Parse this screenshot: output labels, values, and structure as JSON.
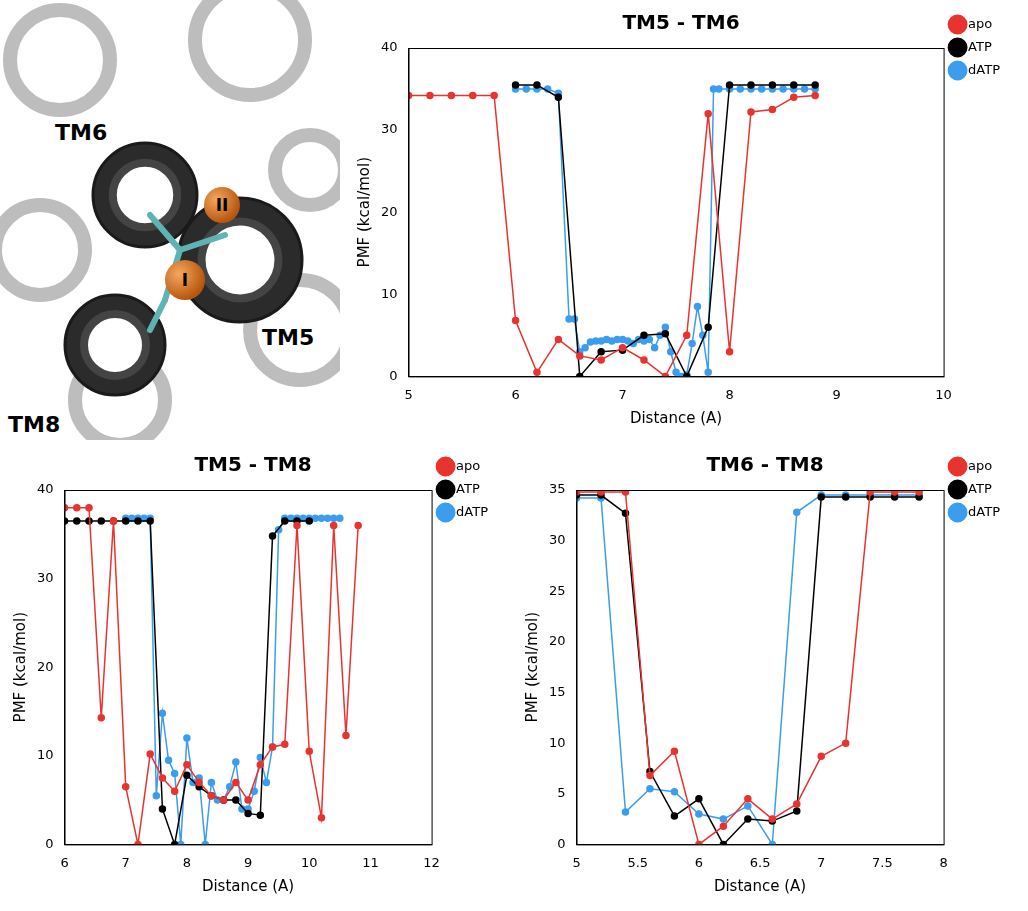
{
  "chart_data": [
    {
      "type": "line",
      "title": "TM5 - TM6",
      "x_label": "Distance (A)",
      "y_label": "PMF (kcal/mol)",
      "xlim": [
        5,
        10
      ],
      "xticks": [
        5,
        6,
        7,
        8,
        9,
        10
      ],
      "ylim": [
        0,
        40
      ],
      "yticks": [
        0,
        10,
        20,
        30,
        40
      ],
      "grid": false,
      "legend": "right",
      "series": [
        {
          "name": "apo",
          "color": "#e8332f",
          "marker": "circle",
          "line_style": "solid",
          "x": [
            5.0,
            5.2,
            5.4,
            5.6,
            5.8,
            6.0,
            6.2,
            6.4,
            6.6,
            6.8,
            7.0,
            7.2,
            7.4,
            7.6,
            7.8,
            8.0,
            8.2,
            8.4,
            8.6,
            8.8
          ],
          "values": [
            34.2,
            34.2,
            34.2,
            34.2,
            34.2,
            6.8,
            0.5,
            4.5,
            2.5,
            2.0,
            3.5,
            2.0,
            0,
            5.0,
            32.0,
            3.0,
            32.2,
            32.5,
            34.0,
            34.2
          ]
        },
        {
          "name": "ATP",
          "color": "#000000",
          "marker": "circle",
          "line_style": "solid",
          "x": [
            6.0,
            6.2,
            6.4,
            6.6,
            6.8,
            7.0,
            7.2,
            7.4,
            7.6,
            7.8,
            8.0,
            8.2,
            8.4,
            8.6,
            8.8
          ],
          "values": [
            35.5,
            35.5,
            34.0,
            0,
            3.0,
            3.2,
            5.0,
            5.2,
            0,
            6.0,
            35.5,
            35.5,
            35.5,
            35.5,
            35.5
          ]
        },
        {
          "name": "dATP",
          "color": "#3b9ded",
          "marker": "circle",
          "line_style": "solid",
          "x": [
            6.0,
            6.1,
            6.2,
            6.3,
            6.4,
            6.5,
            6.55,
            6.6,
            6.65,
            6.7,
            6.75,
            6.8,
            6.85,
            6.9,
            6.95,
            7.0,
            7.05,
            7.1,
            7.15,
            7.2,
            7.25,
            7.3,
            7.35,
            7.4,
            7.45,
            7.5,
            7.55,
            7.6,
            7.65,
            7.7,
            7.75,
            7.8,
            7.85,
            7.9,
            8.0,
            8.1,
            8.2,
            8.3,
            8.4,
            8.5,
            8.6,
            8.7,
            8.8
          ],
          "values": [
            35.0,
            35.0,
            35.0,
            35.0,
            34.5,
            7.0,
            7.0,
            3.0,
            3.5,
            4.2,
            4.3,
            4.3,
            4.5,
            4.3,
            4.5,
            4.5,
            4.3,
            4.0,
            4.5,
            4.3,
            4.5,
            3.5,
            5.0,
            6.0,
            3.0,
            0.5,
            0,
            0.2,
            4.0,
            8.5,
            5.0,
            0.5,
            35.0,
            35.0,
            35.0,
            35.0,
            35.0,
            35.0,
            35.0,
            35.0,
            35.0,
            35.0,
            35.0
          ]
        }
      ]
    },
    {
      "type": "line",
      "title": "TM5 - TM8",
      "x_label": "Distance (A)",
      "y_label": "PMF (kcal/mol)",
      "xlim": [
        6,
        12
      ],
      "xticks": [
        6,
        7,
        8,
        9,
        10,
        11,
        12
      ],
      "ylim": [
        0,
        40
      ],
      "yticks": [
        0,
        10,
        20,
        30,
        40
      ],
      "grid": false,
      "legend": "right",
      "series": [
        {
          "name": "apo",
          "color": "#e8332f",
          "marker": "circle",
          "line_style": "solid",
          "x": [
            6.0,
            6.2,
            6.4,
            6.6,
            6.8,
            7.0,
            7.2,
            7.4,
            7.6,
            7.8,
            8.0,
            8.2,
            8.4,
            8.6,
            8.8,
            9.0,
            9.2,
            9.4,
            9.6,
            9.8,
            10.0,
            10.2,
            10.4,
            10.6,
            10.8
          ],
          "values": [
            38.0,
            38.0,
            38.0,
            14.3,
            36.5,
            6.5,
            0,
            10.2,
            7.5,
            6.0,
            9.0,
            7.0,
            5.5,
            5.0,
            7.0,
            5.0,
            9.0,
            11.0,
            11.3,
            36.0,
            10.5,
            3.0,
            36.0,
            12.3,
            36.0
          ]
        },
        {
          "name": "ATP",
          "color": "#000000",
          "marker": "circle",
          "line_style": "solid",
          "x": [
            6.0,
            6.2,
            6.4,
            6.6,
            6.8,
            7.0,
            7.2,
            7.4,
            7.6,
            7.8,
            8.0,
            8.2,
            8.4,
            8.6,
            8.8,
            9.0,
            9.2,
            9.4,
            9.6,
            9.8,
            10.0
          ],
          "values": [
            36.5,
            36.5,
            36.5,
            36.5,
            36.5,
            36.5,
            36.5,
            36.5,
            4.0,
            0,
            7.8,
            6.5,
            5.5,
            5.0,
            5.0,
            3.5,
            3.3,
            34.8,
            36.5,
            36.5,
            36.5
          ]
        },
        {
          "name": "dATP",
          "color": "#3b9ded",
          "marker": "circle",
          "line_style": "solid",
          "x": [
            7.0,
            7.1,
            7.2,
            7.3,
            7.4,
            7.5,
            7.6,
            7.7,
            7.8,
            7.9,
            8.0,
            8.1,
            8.2,
            8.3,
            8.4,
            8.5,
            8.6,
            8.7,
            8.8,
            8.9,
            9.0,
            9.1,
            9.2,
            9.3,
            9.4,
            9.5,
            9.6,
            9.7,
            9.8,
            9.9,
            10.0,
            10.1,
            10.2,
            10.3,
            10.4,
            10.5
          ],
          "values": [
            36.8,
            36.8,
            36.8,
            36.8,
            36.8,
            5.5,
            14.8,
            9.5,
            8.0,
            0,
            12.0,
            7.0,
            7.5,
            0,
            7.0,
            5.0,
            5.0,
            6.5,
            9.3,
            4.0,
            4.0,
            6.0,
            9.8,
            7.0,
            11.0,
            35.5,
            36.8,
            36.8,
            36.8,
            36.8,
            36.8,
            36.8,
            36.8,
            36.8,
            36.8,
            36.8
          ]
        }
      ]
    },
    {
      "type": "line",
      "title": "TM6 - TM8",
      "x_label": "Distance (A)",
      "y_label": "PMF (kcal/mol)",
      "xlim": [
        5,
        8
      ],
      "xticks": [
        5,
        5.5,
        6,
        6.5,
        7,
        7.5,
        8
      ],
      "ylim": [
        0,
        35
      ],
      "yticks": [
        0,
        5,
        10,
        15,
        20,
        25,
        30,
        35
      ],
      "grid": false,
      "legend": "right",
      "series": [
        {
          "name": "apo",
          "color": "#e8332f",
          "marker": "circle",
          "line_style": "solid",
          "x": [
            5.0,
            5.2,
            5.4,
            5.6,
            5.8,
            6.0,
            6.2,
            6.4,
            6.6,
            6.8,
            7.0,
            7.2,
            7.4,
            7.6,
            7.8
          ],
          "values": [
            34.8,
            34.8,
            34.8,
            6.8,
            9.2,
            0,
            1.8,
            4.5,
            2.5,
            4.0,
            8.7,
            10.0,
            34.8,
            34.8,
            34.8
          ]
        },
        {
          "name": "ATP",
          "color": "#000000",
          "marker": "circle",
          "line_style": "solid",
          "x": [
            5.0,
            5.2,
            5.4,
            5.6,
            5.8,
            6.0,
            6.2,
            6.4,
            6.6,
            6.8,
            7.0,
            7.2,
            7.4,
            7.6,
            7.8
          ],
          "values": [
            34.5,
            34.5,
            32.7,
            7.2,
            2.8,
            4.5,
            0,
            2.5,
            2.3,
            3.3,
            34.3,
            34.3,
            34.3,
            34.3,
            34.3
          ]
        },
        {
          "name": "dATP",
          "color": "#3b9ded",
          "marker": "circle",
          "line_style": "solid",
          "x": [
            5.0,
            5.2,
            5.4,
            5.6,
            5.8,
            6.0,
            6.2,
            6.4,
            6.6,
            6.8,
            7.0,
            7.2,
            7.4,
            7.6,
            7.8
          ],
          "values": [
            34.2,
            34.2,
            3.2,
            5.5,
            5.2,
            3.0,
            2.5,
            3.8,
            0,
            32.8,
            34.5,
            34.5,
            34.5,
            34.5,
            34.5
          ]
        }
      ]
    }
  ],
  "structure_panel": {
    "helix_labels": [
      "TM6",
      "TM5",
      "TM8"
    ],
    "ion_labels": [
      "I",
      "II"
    ]
  }
}
